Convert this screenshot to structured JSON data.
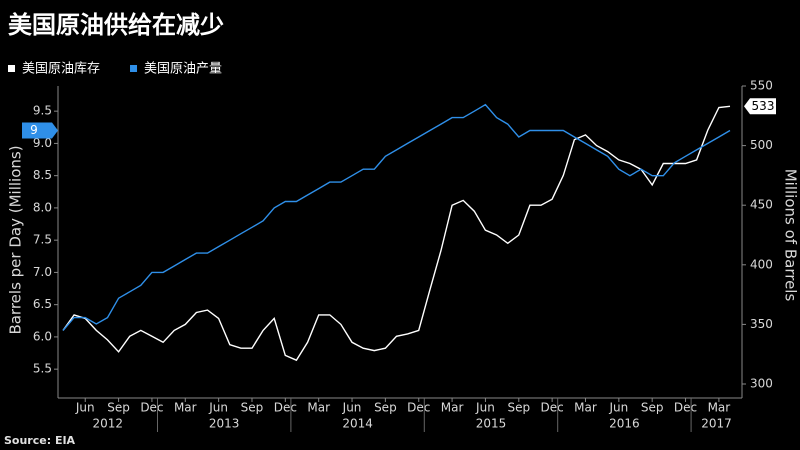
{
  "chart_data": {
    "type": "line",
    "title": "美国原油供给在减少",
    "source": "Source: EIA",
    "y_label": "Barrels per Day (Millions)",
    "y2_label": "Millions of Barrels",
    "x": [
      "2012-04",
      "2012-05",
      "2012-06",
      "2012-07",
      "2012-08",
      "2012-09",
      "2012-10",
      "2012-11",
      "2012-12",
      "2013-01",
      "2013-02",
      "2013-03",
      "2013-04",
      "2013-05",
      "2013-06",
      "2013-07",
      "2013-08",
      "2013-09",
      "2013-10",
      "2013-11",
      "2013-12",
      "2014-01",
      "2014-02",
      "2014-03",
      "2014-04",
      "2014-05",
      "2014-06",
      "2014-07",
      "2014-08",
      "2014-09",
      "2014-10",
      "2014-11",
      "2014-12",
      "2015-01",
      "2015-02",
      "2015-03",
      "2015-04",
      "2015-05",
      "2015-06",
      "2015-07",
      "2015-08",
      "2015-09",
      "2015-10",
      "2015-11",
      "2015-12",
      "2016-01",
      "2016-02",
      "2016-03",
      "2016-04",
      "2016-05",
      "2016-06",
      "2016-07",
      "2016-08",
      "2016-09",
      "2016-10",
      "2016-11",
      "2016-12",
      "2017-01",
      "2017-02",
      "2017-03",
      "2017-04"
    ],
    "xlim": [
      "2012-04",
      "2017-04"
    ],
    "xticks": [
      {
        "value": "2012-06",
        "label": "Jun"
      },
      {
        "value": "2012-09",
        "label": "Sep"
      },
      {
        "value": "2012-12",
        "label": "Dec"
      },
      {
        "value": "2013-03",
        "label": "Mar"
      },
      {
        "value": "2013-06",
        "label": "Jun"
      },
      {
        "value": "2013-09",
        "label": "Sep"
      },
      {
        "value": "2013-12",
        "label": "Dec"
      },
      {
        "value": "2014-03",
        "label": "Mar"
      },
      {
        "value": "2014-06",
        "label": "Jun"
      },
      {
        "value": "2014-09",
        "label": "Sep"
      },
      {
        "value": "2014-12",
        "label": "Dec"
      },
      {
        "value": "2015-03",
        "label": "Mar"
      },
      {
        "value": "2015-06",
        "label": "Jun"
      },
      {
        "value": "2015-09",
        "label": "Sep"
      },
      {
        "value": "2015-12",
        "label": "Dec"
      },
      {
        "value": "2016-03",
        "label": "Mar"
      },
      {
        "value": "2016-06",
        "label": "Jun"
      },
      {
        "value": "2016-09",
        "label": "Sep"
      },
      {
        "value": "2016-12",
        "label": "Dec"
      },
      {
        "value": "2017-03",
        "label": "Mar"
      }
    ],
    "years": [
      2012,
      2013,
      2014,
      2015,
      2016,
      2017
    ],
    "ylim": [
      5.27,
      9.89
    ],
    "yticks": [
      5.5,
      {
        "value": 6,
        "label": "6.0"
      },
      6.5,
      {
        "value": 7,
        "label": "7.0"
      },
      7.5,
      {
        "value": 8,
        "label": "8.0"
      },
      8.5,
      {
        "value": 9,
        "label": "9.0"
      },
      9.5
    ],
    "y2lim": [
      300,
      550
    ],
    "y2ticks": [
      300,
      350,
      400,
      450,
      500,
      550
    ],
    "grid": false,
    "series": [
      {
        "name": "美国原油库存",
        "color": "#ffffff",
        "axis": "y2",
        "last_label": "533",
        "values": [
          345,
          358,
          355,
          345,
          337,
          327,
          340,
          345,
          340,
          335,
          345,
          350,
          360,
          362,
          355,
          333,
          330,
          330,
          345,
          355,
          324,
          320,
          335,
          358,
          358,
          350,
          335,
          330,
          328,
          330,
          340,
          342,
          345,
          379,
          412,
          450,
          454,
          445,
          429,
          425,
          418,
          425,
          450,
          450,
          455,
          475,
          505,
          509,
          500,
          495,
          488,
          485,
          480,
          467,
          485,
          485,
          485,
          488,
          513,
          532,
          533
        ]
      },
      {
        "name": "美国原油产量",
        "color": "#2f8fe8",
        "axis": "y",
        "last_label": "9",
        "values": [
          6.1,
          6.3,
          6.3,
          6.2,
          6.3,
          6.6,
          6.7,
          6.8,
          7.0,
          7.0,
          7.1,
          7.2,
          7.3,
          7.3,
          7.4,
          7.5,
          7.6,
          7.7,
          7.8,
          8.0,
          8.1,
          8.1,
          8.2,
          8.3,
          8.4,
          8.4,
          8.5,
          8.6,
          8.6,
          8.8,
          8.9,
          9.0,
          9.1,
          9.2,
          9.3,
          9.4,
          9.4,
          9.5,
          9.6,
          9.4,
          9.3,
          9.1,
          9.2,
          9.2,
          9.2,
          9.2,
          9.1,
          9.0,
          8.9,
          8.8,
          8.6,
          8.5,
          8.6,
          8.5,
          8.5,
          8.7,
          8.8,
          8.9,
          9.0,
          9.1,
          9.2
        ]
      }
    ]
  }
}
